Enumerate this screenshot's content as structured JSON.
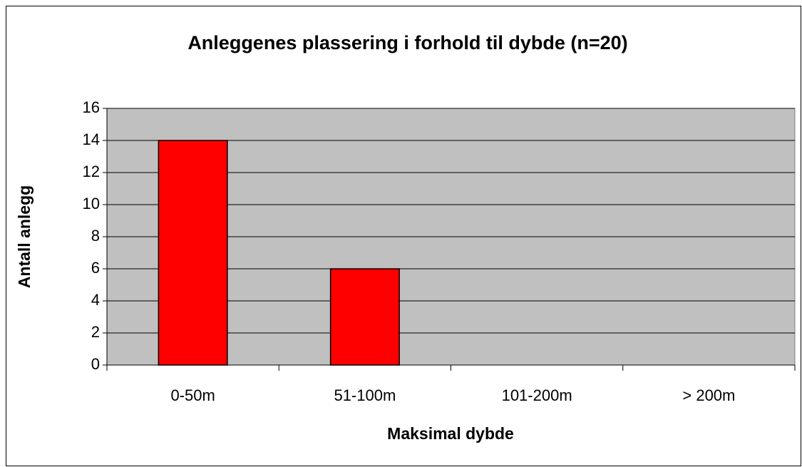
{
  "chart_data": {
    "type": "bar",
    "title": "Anleggenes plassering i forhold til dybde (n=20)",
    "x_label": "Maksimal dybde",
    "y_label": "Antall anlegg",
    "categories": [
      "0-50m",
      "51-100m",
      "101-200m",
      "> 200m"
    ],
    "values": [
      14,
      6,
      0,
      0
    ],
    "color": "#ff0000",
    "ylim": [
      0,
      16
    ],
    "yticks": [
      0,
      2,
      4,
      6,
      8,
      10,
      12,
      14,
      16
    ],
    "grid": true
  }
}
